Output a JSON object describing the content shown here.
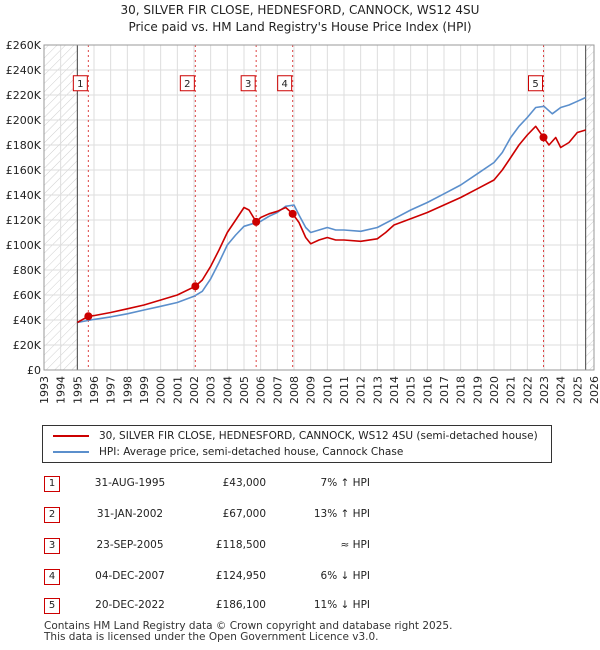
{
  "chart_data": {
    "type": "line",
    "title": "30, SILVER FIR CLOSE, HEDNESFORD, CANNOCK, WS12 4SU",
    "subtitle": "Price paid vs. HM Land Registry's House Price Index (HPI)",
    "xlabel": "",
    "ylabel": "",
    "xlim": [
      1993,
      2026
    ],
    "ylim": [
      0,
      260000
    ],
    "x_ticks": [
      "1993",
      "1994",
      "1995",
      "1996",
      "1997",
      "1998",
      "1999",
      "2000",
      "2001",
      "2002",
      "2003",
      "2004",
      "2005",
      "2006",
      "2007",
      "2008",
      "2009",
      "2010",
      "2011",
      "2012",
      "2013",
      "2014",
      "2015",
      "2016",
      "2017",
      "2018",
      "2019",
      "2020",
      "2021",
      "2022",
      "2023",
      "2024",
      "2025",
      "2026"
    ],
    "y_ticks": [
      "£0",
      "£20K",
      "£40K",
      "£60K",
      "£80K",
      "£100K",
      "£120K",
      "£140K",
      "£160K",
      "£180K",
      "£200K",
      "£220K",
      "£240K",
      "£260K"
    ],
    "grid": true,
    "data_start": 1995.0,
    "data_end": 2025.5,
    "hatched_before": 1995.0,
    "hatched_after": 2025.5,
    "series": [
      {
        "name": "30, SILVER FIR CLOSE, HEDNESFORD, CANNOCK, WS12 4SU (semi-detached house)",
        "color": "#cc0000",
        "x": [
          1995.0,
          1995.66,
          1996.0,
          1997.0,
          1998.0,
          1999.0,
          2000.0,
          2001.0,
          2002.08,
          2002.5,
          2003.0,
          2003.5,
          2004.0,
          2004.5,
          2005.0,
          2005.3,
          2005.73,
          2006.0,
          2006.5,
          2007.0,
          2007.5,
          2007.92,
          2008.3,
          2008.7,
          2009.0,
          2009.5,
          2010.0,
          2010.5,
          2011.0,
          2012.0,
          2013.0,
          2013.5,
          2014.0,
          2015.0,
          2016.0,
          2017.0,
          2018.0,
          2019.0,
          2020.0,
          2020.5,
          2021.0,
          2021.5,
          2022.0,
          2022.5,
          2022.97,
          2023.3,
          2023.7,
          2024.0,
          2024.5,
          2025.0,
          2025.5
        ],
        "values": [
          38000,
          43000,
          43500,
          46000,
          49000,
          52000,
          56000,
          60000,
          67000,
          72000,
          83000,
          96000,
          110000,
          120000,
          130000,
          128000,
          118500,
          122000,
          125000,
          127000,
          130000,
          124950,
          118000,
          106000,
          101000,
          104000,
          106000,
          104000,
          104000,
          103000,
          105000,
          110000,
          116000,
          121000,
          126000,
          132000,
          138000,
          145000,
          152000,
          160000,
          170000,
          180000,
          188000,
          195000,
          186100,
          180000,
          186000,
          178000,
          182000,
          190000,
          192000
        ]
      },
      {
        "name": "HPI: Average price, semi-detached house, Cannock Chase",
        "color": "#5b8fcc",
        "x": [
          1995.0,
          1996.0,
          1997.0,
          1998.0,
          1999.0,
          2000.0,
          2001.0,
          2002.0,
          2002.5,
          2003.0,
          2003.5,
          2004.0,
          2004.5,
          2005.0,
          2005.5,
          2006.0,
          2006.5,
          2007.0,
          2007.5,
          2008.0,
          2008.3,
          2008.7,
          2009.0,
          2009.5,
          2010.0,
          2010.5,
          2011.0,
          2012.0,
          2013.0,
          2014.0,
          2015.0,
          2016.0,
          2017.0,
          2018.0,
          2019.0,
          2020.0,
          2020.5,
          2021.0,
          2021.5,
          2022.0,
          2022.5,
          2023.0,
          2023.5,
          2024.0,
          2024.5,
          2025.0,
          2025.5
        ],
        "values": [
          38000,
          40500,
          42500,
          45000,
          48000,
          51000,
          54000,
          59000,
          63000,
          73000,
          86000,
          100000,
          108000,
          115000,
          117000,
          119000,
          123000,
          126000,
          131000,
          132000,
          124000,
          114000,
          110000,
          112000,
          114000,
          112000,
          112000,
          111000,
          114000,
          121000,
          128000,
          134000,
          141000,
          148000,
          157000,
          166000,
          174000,
          186000,
          195000,
          202000,
          210000,
          211000,
          205000,
          210000,
          212000,
          215000,
          218000
        ]
      }
    ],
    "sale_markers": [
      {
        "label": "1",
        "x": 1995.66,
        "value": 43000
      },
      {
        "label": "2",
        "x": 2002.08,
        "value": 67000
      },
      {
        "label": "3",
        "x": 2005.73,
        "value": 118500
      },
      {
        "label": "4",
        "x": 2007.92,
        "value": 124950
      },
      {
        "label": "5",
        "x": 2022.97,
        "value": 186100
      }
    ],
    "marker_label_value": 229000
  },
  "legend": {
    "property_label": "30, SILVER FIR CLOSE, HEDNESFORD, CANNOCK, WS12 4SU (semi-detached house)",
    "hpi_label": "HPI: Average price, semi-detached house, Cannock Chase",
    "property_color": "#cc0000",
    "hpi_color": "#5b8fcc"
  },
  "sales": [
    {
      "num": "1",
      "date": "31-AUG-1995",
      "price": "£43,000",
      "hpi": "7% ↑ HPI"
    },
    {
      "num": "2",
      "date": "31-JAN-2002",
      "price": "£67,000",
      "hpi": "13% ↑ HPI"
    },
    {
      "num": "3",
      "date": "23-SEP-2005",
      "price": "£118,500",
      "hpi": "≈ HPI"
    },
    {
      "num": "4",
      "date": "04-DEC-2007",
      "price": "£124,950",
      "hpi": "6% ↓ HPI"
    },
    {
      "num": "5",
      "date": "20-DEC-2022",
      "price": "£186,100",
      "hpi": "11% ↓ HPI"
    }
  ],
  "footer": {
    "line1": "Contains HM Land Registry data © Crown copyright and database right 2025.",
    "line2": "This data is licensed under the Open Government Licence v3.0."
  }
}
